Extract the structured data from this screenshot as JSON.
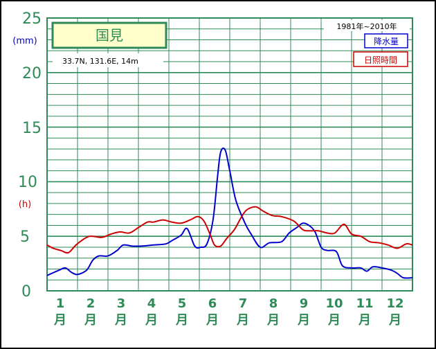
{
  "chart_data": {
    "type": "line",
    "title": "国見",
    "location": "33.7N,  131.6E,  14m",
    "period": "1981年~2010年",
    "y_unit_precip": "(mm)",
    "y_unit_sun": "(h)",
    "y_ticks": [
      "25",
      "20",
      "15",
      "10",
      "5",
      "0"
    ],
    "ylim": [
      0,
      25
    ],
    "x_ticks": [
      {
        "num": "1",
        "label": "月"
      },
      {
        "num": "2",
        "label": "月"
      },
      {
        "num": "3",
        "label": "月"
      },
      {
        "num": "4",
        "label": "月"
      },
      {
        "num": "5",
        "label": "月"
      },
      {
        "num": "6",
        "label": "月"
      },
      {
        "num": "7",
        "label": "月"
      },
      {
        "num": "8",
        "label": "月"
      },
      {
        "num": "9",
        "label": "月"
      },
      {
        "num": "10",
        "label": "月"
      },
      {
        "num": "11",
        "label": "月"
      },
      {
        "num": "12",
        "label": "月"
      }
    ],
    "xlim": [
      0.5,
      12.5
    ],
    "grid": true,
    "legend_position": "top-right",
    "series": [
      {
        "name": "降水量",
        "color": "#0000cc",
        "x": [
          0.5,
          0.9,
          1.1,
          1.3,
          1.5,
          1.8,
          2.0,
          2.2,
          2.5,
          2.8,
          3.0,
          3.3,
          3.6,
          4.0,
          4.4,
          4.6,
          4.9,
          5.1,
          5.35,
          5.55,
          5.75,
          5.95,
          6.1,
          6.2,
          6.35,
          6.5,
          6.7,
          7.0,
          7.2,
          7.5,
          7.8,
          8.2,
          8.45,
          8.7,
          8.9,
          9.1,
          9.3,
          9.5,
          9.7,
          10.0,
          10.2,
          10.5,
          10.8,
          11.0,
          11.2,
          11.5,
          11.8,
          12.0,
          12.2,
          12.5
        ],
        "values": [
          1.4,
          1.9,
          2.1,
          1.7,
          1.5,
          1.9,
          2.8,
          3.2,
          3.2,
          3.7,
          4.2,
          4.1,
          4.1,
          4.2,
          4.3,
          4.6,
          5.1,
          5.7,
          4.1,
          4.0,
          4.3,
          6.5,
          10.5,
          12.7,
          12.9,
          11.0,
          8.3,
          6.2,
          5.2,
          4.0,
          4.4,
          4.5,
          5.3,
          5.8,
          6.2,
          6.0,
          5.4,
          4.0,
          3.7,
          3.6,
          2.3,
          2.1,
          2.1,
          1.8,
          2.2,
          2.1,
          1.9,
          1.6,
          1.2,
          1.2
        ]
      },
      {
        "name": "日照時間",
        "color": "#cc0000",
        "x": [
          0.5,
          0.7,
          0.95,
          1.2,
          1.45,
          1.8,
          2.0,
          2.3,
          2.6,
          2.9,
          3.2,
          3.5,
          3.8,
          4.0,
          4.3,
          4.6,
          4.9,
          5.2,
          5.45,
          5.65,
          5.85,
          6.0,
          6.2,
          6.4,
          6.65,
          6.85,
          7.05,
          7.35,
          7.6,
          7.9,
          8.2,
          8.6,
          8.9,
          9.1,
          9.4,
          9.7,
          9.95,
          10.25,
          10.5,
          10.8,
          11.1,
          11.4,
          11.7,
          12.0,
          12.3,
          12.5
        ],
        "values": [
          4.2,
          3.9,
          3.7,
          3.5,
          4.2,
          4.9,
          5.0,
          4.9,
          5.2,
          5.4,
          5.3,
          5.8,
          6.3,
          6.3,
          6.5,
          6.3,
          6.2,
          6.5,
          6.8,
          6.4,
          5.2,
          4.2,
          4.1,
          4.8,
          5.6,
          6.6,
          7.4,
          7.7,
          7.3,
          6.9,
          6.8,
          6.4,
          5.6,
          5.5,
          5.5,
          5.3,
          5.3,
          6.1,
          5.2,
          5.0,
          4.5,
          4.4,
          4.2,
          3.9,
          4.3,
          4.2
        ]
      }
    ]
  }
}
